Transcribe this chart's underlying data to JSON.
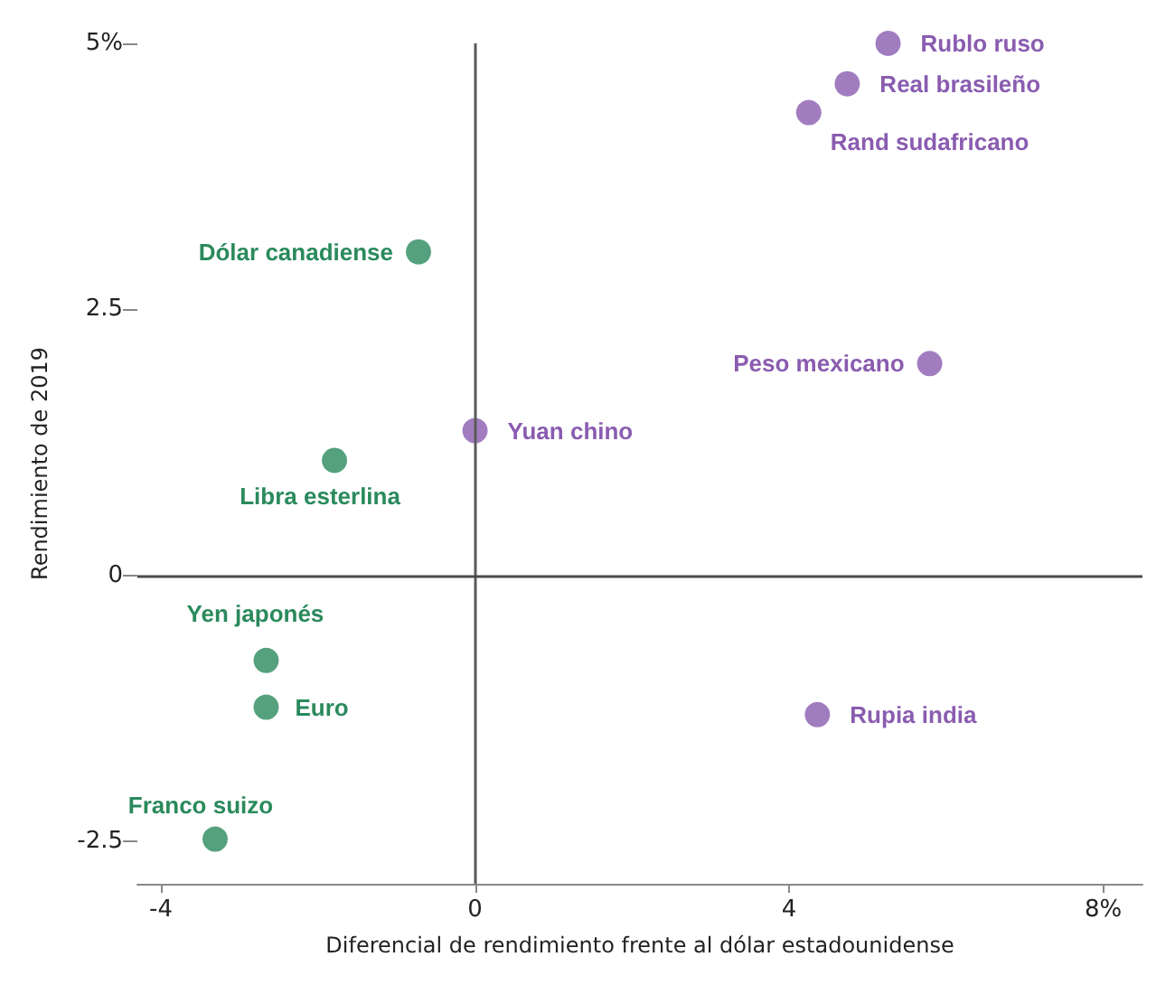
{
  "chart_data": {
    "type": "scatter",
    "xlabel": "Diferencial de rendimiento frente al dólar estadounidense",
    "ylabel": "Rendimiento de 2019",
    "series": [
      {
        "color": "#8a5cb0",
        "x": [
          5.26,
          4.74,
          4.25,
          5.79,
          0,
          4.36
        ],
        "values": [
          5.0,
          4.62,
          4.35,
          1.99,
          1.36,
          -1.31
        ]
      },
      {
        "color": "#2a8a5c",
        "x": [
          -0.72,
          -1.79,
          -2.66,
          -2.66,
          -3.31
        ],
        "values": [
          3.04,
          1.08,
          -0.8,
          -1.24,
          -2.48
        ]
      }
    ],
    "annotations": [
      {
        "text": "Rublo ruso",
        "x": 5.26,
        "y": 5.0
      },
      {
        "text": "Real brasileño",
        "x": 4.74,
        "y": 4.62
      },
      {
        "text": "Rand sudafricano",
        "x": 4.25,
        "y": 4.35
      },
      {
        "text": "Dólar canadiense",
        "x": -0.72,
        "y": 3.04
      },
      {
        "text": "Peso mexicano",
        "x": 5.79,
        "y": 1.99
      },
      {
        "text": "Yuan chino",
        "x": 0,
        "y": 1.36
      },
      {
        "text": "Libra esterlina",
        "x": -1.79,
        "y": 1.08
      },
      {
        "text": "Yen japonés",
        "x": -2.66,
        "y": -0.8
      },
      {
        "text": "Euro",
        "x": -2.66,
        "y": -1.24
      },
      {
        "text": "Franco suizo",
        "x": -3.31,
        "y": -2.48
      },
      {
        "text": "Rupia india",
        "x": 4.36,
        "y": -1.31
      }
    ],
    "xlim": [
      -4.3,
      8.5
    ],
    "xticks": [
      -4,
      0,
      4,
      {
        "value": 8,
        "label": "8%"
      }
    ],
    "ylim": [
      -2.9,
      5.0
    ],
    "yticks": [
      {
        "value": -2.5,
        "label": "-2.5"
      },
      0,
      2.5,
      {
        "value": 5,
        "label": "5%"
      }
    ],
    "ref_lines": [
      {
        "axis": "x",
        "value": 0,
        "color": "#5a5a5a"
      },
      {
        "axis": "y",
        "value": 0,
        "color": "#4a4a4a"
      }
    ],
    "grid": false,
    "marker": "circle"
  }
}
